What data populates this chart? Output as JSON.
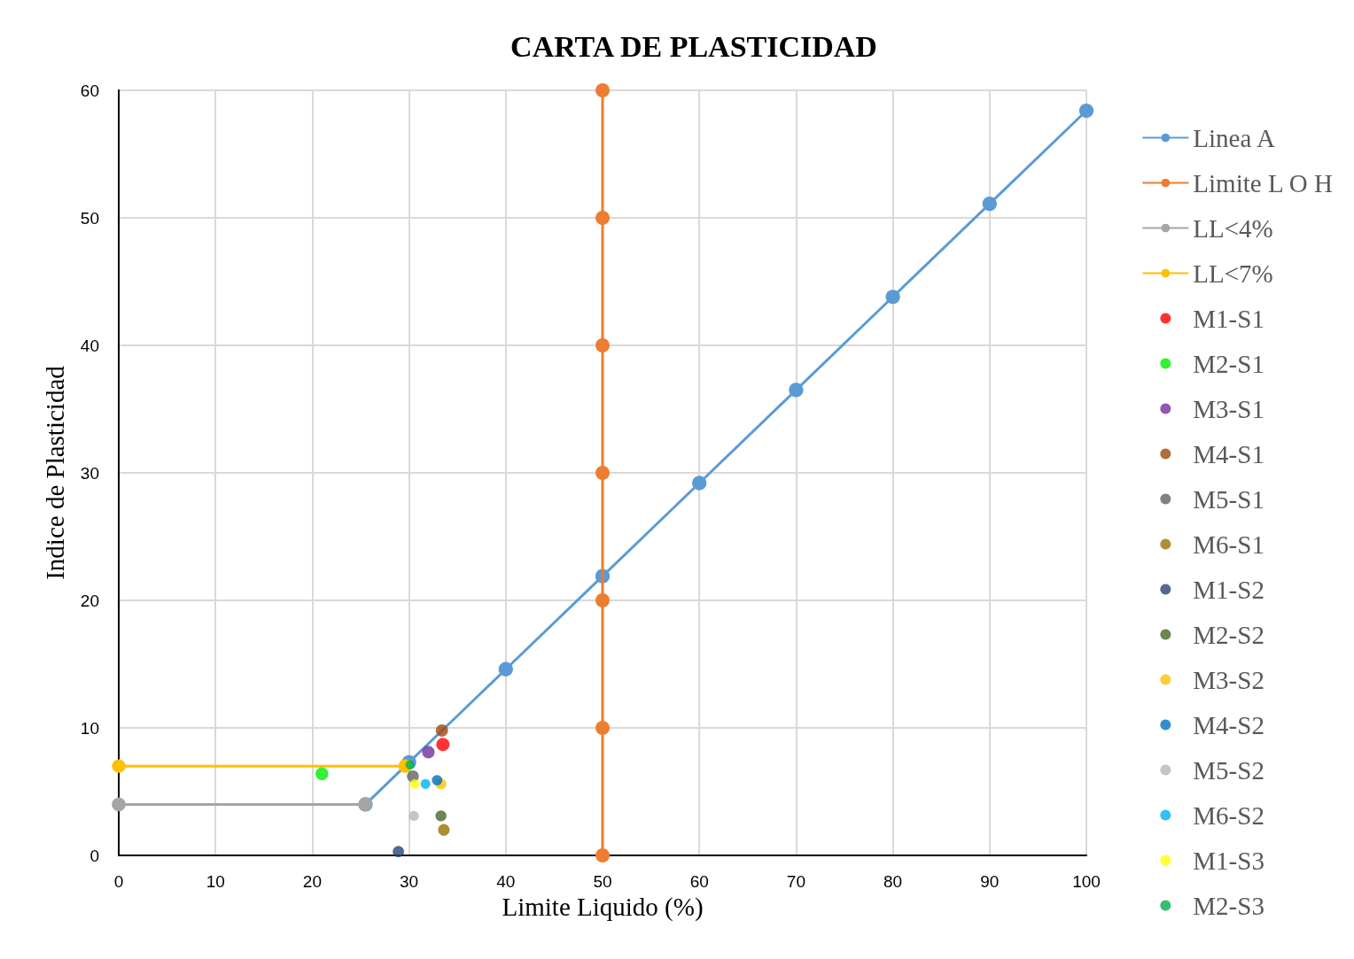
{
  "chart_data": {
    "type": "line",
    "title": "CARTA DE PLASTICIDAD",
    "xlabel": "Limite Liquido (%)",
    "ylabel": "Indice de Plasticidad",
    "xlim": [
      0,
      100
    ],
    "xticks": [
      0,
      10,
      20,
      30,
      40,
      50,
      60,
      70,
      80,
      90,
      100
    ],
    "ylim": [
      0,
      60
    ],
    "yticks": [
      0,
      10,
      20,
      30,
      40,
      50,
      60
    ],
    "grid": true,
    "legend": "right",
    "marker": "circle",
    "line_style": "solid",
    "series": [
      {
        "name": "Linea A",
        "color": "#5b9bd5",
        "x": [
          25.5,
          30,
          40,
          50,
          60,
          70,
          80,
          90,
          100
        ],
        "values": [
          4,
          7.3,
          14.6,
          21.9,
          29.2,
          36.5,
          43.8,
          51.1,
          58.4
        ]
      },
      {
        "name": "Limite L O H",
        "color": "#ed7d31",
        "x": [
          50,
          50,
          50,
          50,
          50,
          50,
          50
        ],
        "values": [
          0,
          10,
          20,
          30,
          40,
          50,
          60
        ]
      },
      {
        "name": "LL<4%",
        "color": "#a5a5a5",
        "x": [
          0,
          25.5
        ],
        "values": [
          4,
          4
        ]
      },
      {
        "name": "LL<7%",
        "color": "#ffc000",
        "x": [
          0,
          29.6
        ],
        "values": [
          7,
          7
        ]
      },
      {
        "name": "M1-S1",
        "type": "scatter",
        "color": "#ff0000",
        "x": [
          33.5
        ],
        "values": [
          8.7
        ]
      },
      {
        "name": "M2-S1",
        "type": "scatter",
        "color": "#00ee00",
        "x": [
          21.0
        ],
        "values": [
          6.4
        ]
      },
      {
        "name": "M3-S1",
        "type": "scatter",
        "color": "#7030a0",
        "x": [
          32.0
        ],
        "values": [
          8.1
        ]
      },
      {
        "name": "M4-S1",
        "type": "scatter",
        "color": "#9e480e",
        "x": [
          33.4
        ],
        "values": [
          9.8
        ]
      },
      {
        "name": "M5-S1",
        "type": "scatter",
        "color": "#636363",
        "x": [
          30.4
        ],
        "values": [
          6.2
        ]
      },
      {
        "name": "M6-S1",
        "type": "scatter",
        "color": "#997300",
        "x": [
          33.6
        ],
        "values": [
          2.0
        ]
      },
      {
        "name": "M1-S2",
        "type": "scatter",
        "color": "#264478",
        "x": [
          28.9
        ],
        "values": [
          0.3
        ]
      },
      {
        "name": "M2-S2",
        "type": "scatter",
        "color": "#43682b",
        "x": [
          33.3
        ],
        "values": [
          3.1
        ]
      },
      {
        "name": "M3-S2",
        "type": "scatter",
        "color": "#ffc000",
        "x": [
          33.3
        ],
        "values": [
          5.6
        ]
      },
      {
        "name": "M4-S2",
        "type": "scatter",
        "color": "#0070c0",
        "x": [
          32.9
        ],
        "values": [
          5.9
        ]
      },
      {
        "name": "M5-S2",
        "type": "scatter",
        "color": "#b7b7b7",
        "x": [
          30.5
        ],
        "values": [
          3.1
        ]
      },
      {
        "name": "M6-S2",
        "type": "scatter",
        "color": "#00b0f0",
        "x": [
          31.7
        ],
        "values": [
          5.6
        ]
      },
      {
        "name": "M1-S3",
        "type": "scatter",
        "color": "#ffff00",
        "x": [
          30.6
        ],
        "values": [
          5.6
        ]
      },
      {
        "name": "M2-S3",
        "type": "scatter",
        "color": "#00b050",
        "x": [
          30.1
        ],
        "values": [
          7.1
        ]
      }
    ]
  }
}
